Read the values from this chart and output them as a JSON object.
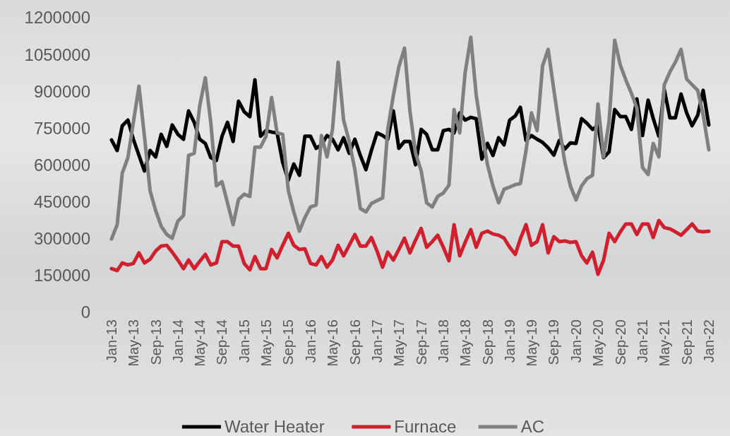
{
  "chart_data": {
    "type": "line",
    "x": [
      "2013-01",
      "2013-02",
      "2013-03",
      "2013-04",
      "2013-05",
      "2013-06",
      "2013-07",
      "2013-08",
      "2013-09",
      "2013-10",
      "2013-11",
      "2013-12",
      "2014-01",
      "2014-02",
      "2014-03",
      "2014-04",
      "2014-05",
      "2014-06",
      "2014-07",
      "2014-08",
      "2014-09",
      "2014-10",
      "2014-11",
      "2014-12",
      "2015-01",
      "2015-02",
      "2015-03",
      "2015-04",
      "2015-05",
      "2015-06",
      "2015-07",
      "2015-08",
      "2015-09",
      "2015-10",
      "2015-11",
      "2015-12",
      "2016-01",
      "2016-02",
      "2016-03",
      "2016-04",
      "2016-05",
      "2016-06",
      "2016-07",
      "2016-08",
      "2016-09",
      "2016-10",
      "2016-11",
      "2016-12",
      "2017-01",
      "2017-02",
      "2017-03",
      "2017-04",
      "2017-05",
      "2017-06",
      "2017-07",
      "2017-08",
      "2017-09",
      "2017-10",
      "2017-11",
      "2017-12",
      "2018-01",
      "2018-02",
      "2018-03",
      "2018-04",
      "2018-05",
      "2018-06",
      "2018-07",
      "2018-08",
      "2018-09",
      "2018-10",
      "2018-11",
      "2018-12",
      "2019-01",
      "2019-02",
      "2019-03",
      "2019-04",
      "2019-05",
      "2019-06",
      "2019-07",
      "2019-08",
      "2019-09",
      "2019-10",
      "2019-11",
      "2019-12",
      "2020-01",
      "2020-02",
      "2020-03",
      "2020-04",
      "2020-05",
      "2020-06",
      "2020-07",
      "2020-08",
      "2020-09",
      "2020-10",
      "2020-11",
      "2020-12",
      "2021-01",
      "2021-02",
      "2021-03",
      "2021-04",
      "2021-05",
      "2021-06",
      "2021-07",
      "2021-08",
      "2021-09",
      "2021-10",
      "2021-11",
      "2021-12",
      "2022-01"
    ],
    "series": [
      {
        "name": "Water Heater",
        "color": "#000000",
        "values": [
          702000,
          659000,
          760000,
          783000,
          705000,
          639000,
          576000,
          659000,
          633000,
          725000,
          676000,
          763000,
          725000,
          705000,
          820000,
          774000,
          705000,
          688000,
          630000,
          619000,
          717000,
          774000,
          696000,
          860000,
          817000,
          797000,
          947000,
          717000,
          740000,
          734000,
          731000,
          610000,
          538000,
          604000,
          558000,
          717000,
          717000,
          668000,
          682000,
          720000,
          705000,
          662000,
          711000,
          648000,
          705000,
          639000,
          581000,
          659000,
          731000,
          720000,
          705000,
          820000,
          668000,
          696000,
          696000,
          601000,
          745000,
          725000,
          662000,
          662000,
          740000,
          745000,
          731000,
          812000,
          783000,
          794000,
          789000,
          624000,
          688000,
          639000,
          711000,
          682000,
          783000,
          800000,
          835000,
          700000,
          720000,
          705000,
          692000,
          670000,
          640000,
          700000,
          665000,
          690000,
          688000,
          789000,
          770000,
          745000,
          760000,
          630000,
          653000,
          826000,
          797000,
          797000,
          745000,
          869000,
          720000,
          864000,
          790000,
          717000,
          907000,
          792000,
          792000,
          889000,
          812000,
          760000,
          803000,
          904000,
          763000
        ]
      },
      {
        "name": "Furnace",
        "color": "#d0202e",
        "values": [
          178000,
          170000,
          201000,
          193000,
          199000,
          242000,
          201000,
          216000,
          250000,
          270000,
          273000,
          245000,
          213000,
          178000,
          213000,
          178000,
          207000,
          236000,
          193000,
          201000,
          288000,
          288000,
          270000,
          270000,
          199000,
          173000,
          227000,
          178000,
          178000,
          256000,
          222000,
          273000,
          322000,
          273000,
          256000,
          259000,
          199000,
          193000,
          227000,
          184000,
          213000,
          273000,
          230000,
          273000,
          317000,
          270000,
          270000,
          305000,
          250000,
          184000,
          245000,
          213000,
          256000,
          302000,
          242000,
          294000,
          342000,
          265000,
          288000,
          314000,
          265000,
          210000,
          357000,
          230000,
          285000,
          337000,
          265000,
          322000,
          331000,
          319000,
          314000,
          302000,
          265000,
          236000,
          300000,
          357000,
          273000,
          288000,
          357000,
          242000,
          308000,
          288000,
          291000,
          285000,
          288000,
          230000,
          201000,
          245000,
          155000,
          213000,
          322000,
          288000,
          328000,
          360000,
          360000,
          317000,
          360000,
          360000,
          305000,
          374000,
          345000,
          340000,
          328000,
          314000,
          337000,
          360000,
          331000,
          328000,
          330000
        ]
      },
      {
        "name": "AC",
        "color": "#808080",
        "values": [
          299000,
          357000,
          567000,
          630000,
          774000,
          921000,
          717000,
          495000,
          414000,
          351000,
          317000,
          302000,
          371000,
          394000,
          639000,
          648000,
          840000,
          955000,
          774000,
          515000,
          532000,
          446000,
          357000,
          460000,
          481000,
          472000,
          673000,
          673000,
          717000,
          875000,
          731000,
          725000,
          495000,
          409000,
          331000,
          386000,
          429000,
          437000,
          720000,
          633000,
          745000,
          1019000,
          783000,
          696000,
          581000,
          423000,
          409000,
          443000,
          455000,
          466000,
          745000,
          884000,
          999000,
          1076000,
          820000,
          648000,
          576000,
          446000,
          429000,
          472000,
          486000,
          518000,
          826000,
          731000,
          976000,
          1120000,
          884000,
          734000,
          601000,
          515000,
          446000,
          501000,
          510000,
          520000,
          524000,
          659000,
          812000,
          740000,
          1004000,
          1071000,
          907000,
          754000,
          610000,
          515000,
          458000,
          515000,
          544000,
          558000,
          849000,
          633000,
          777000,
          1108000,
          1007000,
          947000,
          892000,
          832000,
          590000,
          561000,
          688000,
          633000,
          927000,
          979000,
          1019000,
          1071000,
          950000,
          927000,
          904000,
          803000,
          662000
        ]
      }
    ],
    "xlim": [
      "2013-01",
      "2022-01"
    ],
    "xticks": [
      {
        "value": "2013-01",
        "label": "Jan-13"
      },
      {
        "value": "2013-05",
        "label": "May-13"
      },
      {
        "value": "2013-09",
        "label": "Sep-13"
      },
      {
        "value": "2014-01",
        "label": "Jan-14"
      },
      {
        "value": "2014-05",
        "label": "May-14"
      },
      {
        "value": "2014-09",
        "label": "Sep-14"
      },
      {
        "value": "2015-01",
        "label": "Jan-15"
      },
      {
        "value": "2015-05",
        "label": "May-15"
      },
      {
        "value": "2015-09",
        "label": "Sep-15"
      },
      {
        "value": "2016-01",
        "label": "Jan-16"
      },
      {
        "value": "2016-05",
        "label": "May-16"
      },
      {
        "value": "2016-09",
        "label": "Sep-16"
      },
      {
        "value": "2017-01",
        "label": "Jan-17"
      },
      {
        "value": "2017-05",
        "label": "May-17"
      },
      {
        "value": "2017-09",
        "label": "Sep-17"
      },
      {
        "value": "2018-01",
        "label": "Jan-18"
      },
      {
        "value": "2018-05",
        "label": "May-18"
      },
      {
        "value": "2018-09",
        "label": "Sep-18"
      },
      {
        "value": "2019-01",
        "label": "Jan-19"
      },
      {
        "value": "2019-05",
        "label": "May-19"
      },
      {
        "value": "2019-09",
        "label": "Sep-19"
      },
      {
        "value": "2020-01",
        "label": "Jan-20"
      },
      {
        "value": "2020-05",
        "label": "May-20"
      },
      {
        "value": "2020-09",
        "label": "Sep-20"
      },
      {
        "value": "2021-01",
        "label": "Jan-21"
      },
      {
        "value": "2021-05",
        "label": "May-21"
      },
      {
        "value": "2021-09",
        "label": "Sep-21"
      },
      {
        "value": "2022-01",
        "label": "Jan-22"
      }
    ],
    "ylim": [
      0,
      1200000
    ],
    "yticks": [
      0,
      150000,
      300000,
      450000,
      600000,
      750000,
      900000,
      1050000,
      1200000
    ],
    "grid": false,
    "legend": "bottom",
    "marker": "none",
    "line_style": "solid"
  }
}
